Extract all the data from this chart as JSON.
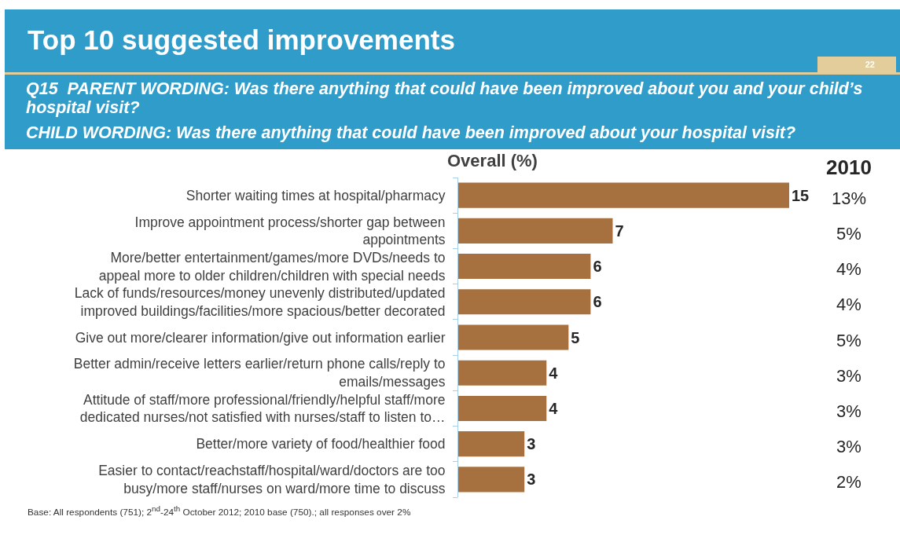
{
  "chart_data": [
    {
      "type": "bar",
      "orientation": "horizontal",
      "title": "Top 10 suggested improvements",
      "subtitle": "Q15  PARENT WORDING: Was there anything that could have been improved about you and your child’s hospital visit?\nCHILD WORDING: Was there anything that could have been improved about your hospital visit?",
      "xlabel": "Overall (%)",
      "categories": [
        "Shorter waiting times at hospital/pharmacy",
        "Improve appointment process/shorter gap between appointments",
        "More/better entertainment/games/more DVDs/needs to appeal more to older children/children with special needs",
        "Lack of funds/resources/money unevenly distributed/updated improved buildings/facilities/more spacious/better decorated",
        "Give out more/clearer information/give out information earlier",
        "Better admin/receive letters earlier/return phone calls/reply to emails/messages",
        "Attitude of staff/more professional/friendly/helpful staff/more dedicated nurses/not satisfied with nurses/staff to listen to…",
        "Better/more variety of food/healthier food",
        "Easier to contact/reachstaff/hospital/ward/doctors are too busy/more staff/nurses on ward/more time to discuss"
      ],
      "values": [
        15,
        7,
        6,
        6,
        5,
        4,
        4,
        3,
        3
      ],
      "color": "#a6703f",
      "xlim": [
        0,
        15
      ],
      "data_labels": true,
      "tick_labels": "y",
      "annotations": [
        "22",
        "Base: All respondents (751); 2$^{nd}$-24$^{th}$ October 2012; 2010 base (750).; all responses over 2%"
      ]
    },
    {
      "type": "other",
      "title": "2010",
      "annotations": [
        "13%",
        "5%",
        "4%",
        "4%",
        "5%",
        "3%",
        "3%",
        "3%",
        "2%"
      ]
    }
  ]
}
